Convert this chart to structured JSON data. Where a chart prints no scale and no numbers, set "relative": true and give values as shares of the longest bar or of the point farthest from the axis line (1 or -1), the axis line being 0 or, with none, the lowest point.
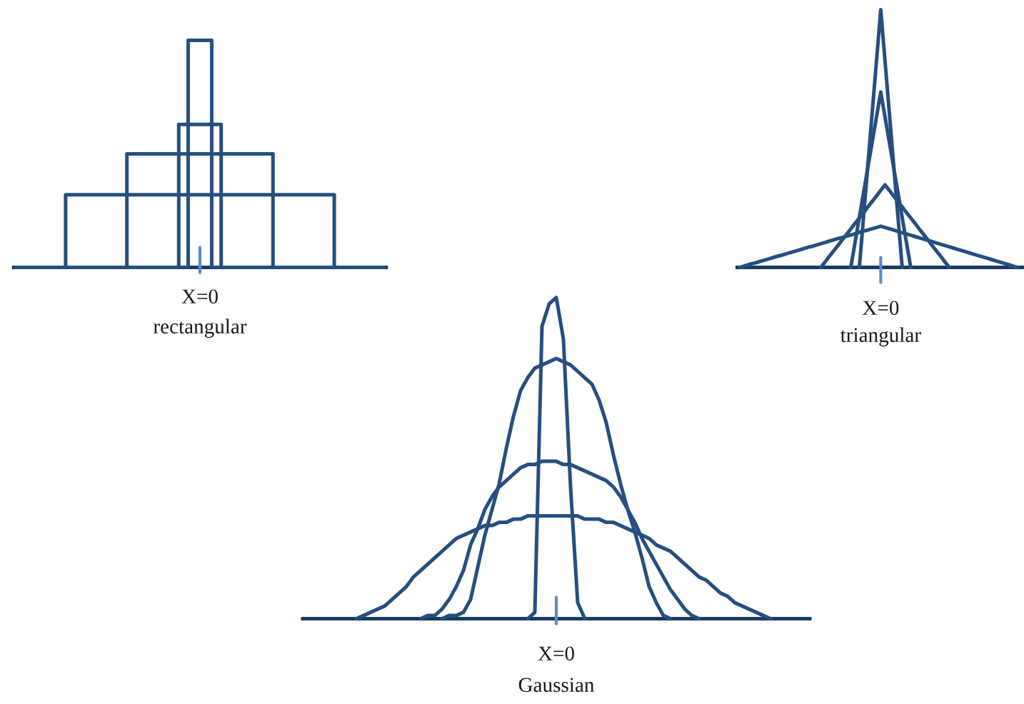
{
  "chart_data": [
    {
      "type": "step",
      "relative": true,
      "xlabel": "rectangular",
      "annotations": [
        "X=0"
      ],
      "categories": [
        null,
        null,
        null,
        null,
        null,
        null,
        null,
        null,
        null,
        null,
        null,
        null,
        null,
        null,
        null,
        null,
        null,
        null,
        null,
        null,
        null,
        null,
        null,
        null,
        null,
        null,
        null,
        null,
        null,
        null,
        null,
        null,
        null,
        null,
        null,
        null,
        null,
        null,
        null,
        null,
        null,
        null,
        null,
        null,
        null,
        null,
        null,
        null,
        null,
        null,
        null,
        null,
        null,
        null,
        null,
        null,
        null,
        null,
        null,
        null,
        null,
        null,
        null,
        null,
        null,
        null,
        null,
        null,
        null,
        null,
        null,
        null,
        null,
        null,
        null,
        null,
        null,
        null,
        null
      ],
      "series": [
        {
          "color": "#264f80",
          "values": [
            0,
            0,
            0,
            0,
            0,
            0,
            0,
            0,
            0,
            0,
            0,
            0,
            0,
            0,
            0,
            0,
            0,
            0,
            0,
            0,
            0,
            0,
            0,
            0,
            0,
            0,
            0,
            0,
            0,
            0,
            0,
            0,
            0,
            0,
            0,
            0,
            0,
            1,
            1,
            1,
            1,
            1,
            0,
            0,
            0,
            0,
            0,
            0,
            0,
            0,
            0,
            0,
            0,
            0,
            0,
            0,
            0,
            0,
            0,
            0,
            0,
            0,
            0,
            0,
            0,
            0,
            0,
            0,
            0,
            0,
            0,
            0,
            0,
            0,
            0,
            0,
            0,
            0,
            0
          ]
        },
        {
          "color": "#264f80",
          "values": [
            0,
            0,
            0,
            0,
            0,
            0,
            0,
            0,
            0,
            0,
            0,
            0,
            0,
            0,
            0,
            0,
            0,
            0,
            0,
            0,
            0,
            0,
            0,
            0,
            0,
            0,
            0,
            0,
            0,
            0,
            0,
            0,
            0,
            0,
            0,
            0.63,
            0.63,
            0.63,
            0.63,
            0.63,
            0.63,
            0.63,
            0.63,
            0.63,
            0,
            0,
            0,
            0,
            0,
            0,
            0,
            0,
            0,
            0,
            0,
            0,
            0,
            0,
            0,
            0,
            0,
            0,
            0,
            0,
            0,
            0,
            0,
            0,
            0,
            0,
            0,
            0,
            0,
            0,
            0,
            0,
            0,
            0,
            0
          ]
        },
        {
          "color": "#264f80",
          "values": [
            0,
            0,
            0,
            0,
            0,
            0,
            0,
            0,
            0,
            0,
            0,
            0,
            0,
            0,
            0,
            0,
            0,
            0,
            0,
            0,
            0,
            0,
            0,
            0,
            0.5,
            0.5,
            0.5,
            0.5,
            0.5,
            0.5,
            0.5,
            0.5,
            0.5,
            0.5,
            0.5,
            0.5,
            0.5,
            0.5,
            0.5,
            0.5,
            0.5,
            0.5,
            0.5,
            0.5,
            0.5,
            0.5,
            0.5,
            0.5,
            0.5,
            0.5,
            0.5,
            0.5,
            0.5,
            0.5,
            0.5,
            0,
            0,
            0,
            0,
            0,
            0,
            0,
            0,
            0,
            0,
            0,
            0,
            0,
            0,
            0,
            0,
            0,
            0,
            0,
            0,
            0,
            0,
            0,
            0
          ]
        },
        {
          "color": "#264f80",
          "values": [
            0,
            0,
            0,
            0,
            0,
            0,
            0,
            0,
            0,
            0,
            0,
            0.32,
            0.32,
            0.32,
            0.32,
            0.32,
            0.32,
            0.32,
            0.32,
            0.32,
            0.32,
            0.32,
            0.32,
            0.32,
            0.32,
            0.32,
            0.32,
            0.32,
            0.32,
            0.32,
            0.32,
            0.32,
            0.32,
            0.32,
            0.32,
            0.32,
            0.32,
            0.32,
            0.32,
            0.32,
            0.32,
            0.32,
            0.32,
            0.32,
            0.32,
            0.32,
            0.32,
            0.32,
            0.32,
            0.32,
            0.32,
            0.32,
            0.32,
            0.32,
            0.32,
            0.32,
            0.32,
            0.32,
            0.32,
            0.32,
            0.32,
            0.32,
            0.32,
            0.32,
            0.32,
            0.32,
            0.32,
            0.32,
            0,
            0,
            0,
            0,
            0,
            0,
            0,
            0,
            0,
            0,
            0
          ]
        }
      ]
    },
    {
      "type": "line",
      "relative": true,
      "xlabel": "triangular",
      "annotations": [
        "X=0"
      ],
      "categories": [
        null,
        null,
        null,
        null,
        null,
        null,
        null,
        null,
        null,
        null,
        null,
        null,
        null,
        null,
        null,
        null,
        null,
        null,
        null,
        null,
        null,
        null,
        null,
        null,
        null,
        null,
        null,
        null,
        null,
        null,
        null,
        null,
        null,
        null,
        null,
        null,
        null,
        null,
        null,
        null,
        null,
        null,
        null,
        null,
        null,
        null,
        null,
        null,
        null,
        null,
        null,
        null,
        null,
        null,
        null,
        null,
        null,
        null,
        null,
        null,
        null,
        null,
        null,
        null,
        null,
        null,
        null
      ],
      "series": [
        {
          "color": "#264f80",
          "values": [
            null,
            null,
            null,
            null,
            null,
            null,
            null,
            null,
            null,
            null,
            null,
            null,
            null,
            null,
            null,
            null,
            null,
            null,
            null,
            null,
            null,
            null,
            null,
            null,
            null,
            null,
            null,
            null,
            0,
            0.2,
            0.4,
            0.6,
            0.8,
            1,
            0.8,
            0.6,
            0.4,
            0.2,
            0,
            null,
            null,
            null,
            null,
            null,
            null,
            null,
            null,
            null,
            null,
            null,
            null,
            null,
            null,
            null,
            null,
            null,
            null,
            null,
            null,
            null,
            null,
            null,
            null,
            null,
            null,
            null,
            null
          ]
        },
        {
          "color": "#264f80",
          "values": [
            null,
            null,
            null,
            null,
            null,
            null,
            null,
            null,
            null,
            null,
            null,
            null,
            null,
            null,
            null,
            null,
            null,
            null,
            null,
            null,
            null,
            null,
            null,
            null,
            null,
            null,
            0,
            0.097,
            0.194,
            0.291,
            0.389,
            0.486,
            0.583,
            0.68,
            0.583,
            0.486,
            0.389,
            0.291,
            0.194,
            0.097,
            0,
            null,
            null,
            null,
            null,
            null,
            null,
            null,
            null,
            null,
            null,
            null,
            null,
            null,
            null,
            null,
            null,
            null,
            null,
            null,
            null,
            null,
            null,
            null,
            null,
            null,
            null
          ]
        },
        {
          "color": "#264f80",
          "values": [
            null,
            null,
            null,
            null,
            null,
            null,
            null,
            null,
            null,
            null,
            null,
            null,
            null,
            null,
            null,
            null,
            null,
            null,
            null,
            0,
            0.021,
            0.043,
            0.064,
            0.085,
            0.107,
            0.128,
            0.149,
            0.171,
            0.192,
            0.213,
            0.235,
            0.256,
            0.277,
            0.299,
            0.32,
            0.299,
            0.277,
            0.256,
            0.235,
            0.213,
            0.192,
            0.171,
            0.149,
            0.128,
            0.107,
            0.085,
            0.064,
            0.043,
            0.021,
            0,
            null,
            null,
            null,
            null,
            null,
            null,
            null,
            null,
            null,
            null,
            null,
            null,
            null,
            null,
            null,
            null,
            null
          ]
        },
        {
          "color": "#264f80",
          "values": [
            0,
            0.005,
            0.01,
            0.015,
            0.019,
            0.024,
            0.029,
            0.034,
            0.039,
            0.044,
            0.048,
            0.053,
            0.058,
            0.063,
            0.068,
            0.073,
            0.078,
            0.082,
            0.087,
            0.092,
            0.097,
            0.102,
            0.107,
            0.112,
            0.116,
            0.121,
            0.126,
            0.131,
            0.136,
            0.141,
            0.145,
            0.15,
            0.155,
            0.16,
            0.155,
            0.15,
            0.145,
            0.14,
            0.135,
            0.13,
            0.125,
            0.12,
            0.115,
            0.11,
            0.105,
            0.1,
            0.095,
            0.09,
            0.085,
            0.08,
            0.075,
            0.07,
            0.065,
            0.06,
            0.055,
            0.05,
            0.045,
            0.04,
            0.035,
            0.03,
            0.025,
            0.02,
            0.015,
            0.01,
            0.005,
            0,
            null
          ]
        }
      ]
    },
    {
      "type": "line",
      "relative": true,
      "xlabel": "Gaussian",
      "annotations": [
        "X=0"
      ],
      "categories": [
        null,
        null,
        null,
        null,
        null,
        null,
        null,
        null,
        null,
        null,
        null,
        null,
        null,
        null,
        null,
        null,
        null,
        null,
        null,
        null,
        null,
        null,
        null,
        null,
        null,
        null,
        null,
        null,
        null,
        null,
        null,
        null,
        null,
        null,
        null,
        null,
        null,
        null,
        null,
        null,
        null,
        null,
        null,
        null,
        null,
        null,
        null,
        null,
        null,
        null,
        null,
        null,
        null,
        null,
        null,
        null,
        null,
        null,
        null,
        null,
        null,
        null,
        null,
        null,
        null,
        null,
        null,
        null,
        null,
        null,
        null
      ],
      "series": [
        {
          "color": "#264f80",
          "values": [
            null,
            null,
            null,
            null,
            null,
            null,
            null,
            null,
            null,
            null,
            null,
            null,
            null,
            null,
            null,
            null,
            null,
            null,
            null,
            null,
            null,
            null,
            null,
            null,
            null,
            null,
            null,
            null,
            null,
            null,
            null,
            0,
            0.02,
            0.91,
            0.98,
            1,
            0.87,
            0.41,
            0.05,
            0,
            null,
            null,
            null,
            null,
            null,
            null,
            null,
            null,
            null,
            null,
            null,
            null,
            null,
            null,
            null,
            null,
            null,
            null,
            null,
            null,
            null,
            null,
            null,
            null,
            null,
            null,
            null,
            null,
            null,
            null,
            null
          ]
        },
        {
          "color": "#264f80",
          "values": [
            null,
            null,
            null,
            null,
            null,
            null,
            null,
            null,
            null,
            null,
            null,
            null,
            null,
            null,
            null,
            null,
            null,
            null,
            null,
            0,
            0.01,
            0.01,
            0.02,
            0.06,
            0.16,
            0.26,
            0.34,
            0.42,
            0.53,
            0.63,
            0.71,
            0.75,
            0.78,
            0.79,
            0.8,
            0.81,
            0.8,
            0.79,
            0.77,
            0.75,
            0.73,
            0.68,
            0.61,
            0.51,
            0.42,
            0.34,
            0.27,
            0.19,
            0.1,
            0.05,
            0.01,
            0,
            null,
            null,
            null,
            null,
            null,
            null,
            null,
            null,
            null,
            null,
            null,
            null,
            null,
            null,
            null,
            null,
            null,
            null,
            null
          ]
        },
        {
          "color": "#264f80",
          "values": [
            null,
            null,
            null,
            null,
            null,
            null,
            null,
            null,
            null,
            null,
            null,
            null,
            null,
            null,
            null,
            null,
            0,
            0.01,
            0.01,
            0.03,
            0.06,
            0.1,
            0.15,
            0.23,
            0.28,
            0.34,
            0.38,
            0.41,
            0.43,
            0.45,
            0.47,
            0.48,
            0.48,
            0.49,
            0.49,
            0.49,
            0.48,
            0.48,
            0.47,
            0.46,
            0.45,
            0.44,
            0.43,
            0.41,
            0.38,
            0.34,
            0.3,
            0.25,
            0.21,
            0.17,
            0.13,
            0.09,
            0.06,
            0.03,
            0.01,
            0,
            null,
            null,
            null,
            null,
            null,
            null,
            null,
            null,
            null,
            null,
            null,
            null,
            null,
            null,
            null
          ]
        },
        {
          "color": "#264f80",
          "values": [
            null,
            null,
            null,
            null,
            null,
            null,
            null,
            0,
            0.01,
            0.02,
            0.03,
            0.04,
            0.06,
            0.08,
            0.1,
            0.13,
            0.15,
            0.17,
            0.19,
            0.21,
            0.23,
            0.25,
            0.26,
            0.27,
            0.28,
            0.29,
            0.29,
            0.3,
            0.3,
            0.31,
            0.31,
            0.32,
            0.32,
            0.32,
            0.32,
            0.32,
            0.32,
            0.32,
            0.32,
            0.31,
            0.31,
            0.31,
            0.3,
            0.3,
            0.29,
            0.28,
            0.27,
            0.26,
            0.25,
            0.23,
            0.22,
            0.21,
            0.19,
            0.17,
            0.15,
            0.13,
            0.12,
            0.1,
            0.08,
            0.07,
            0.05,
            0.04,
            0.03,
            0.02,
            0.01,
            0,
            null,
            null,
            null,
            null,
            null
          ]
        }
      ]
    }
  ]
}
